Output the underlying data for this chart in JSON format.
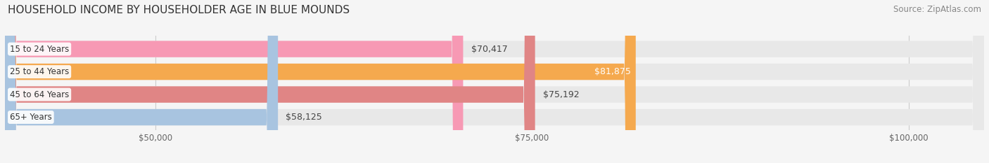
{
  "title": "HOUSEHOLD INCOME BY HOUSEHOLDER AGE IN BLUE MOUNDS",
  "source": "Source: ZipAtlas.com",
  "categories": [
    "15 to 24 Years",
    "25 to 44 Years",
    "45 to 64 Years",
    "65+ Years"
  ],
  "values": [
    70417,
    81875,
    75192,
    58125
  ],
  "bar_colors": [
    "#f799b4",
    "#f5a94e",
    "#e08585",
    "#a8c4e0"
  ],
  "bar_bg_color": "#e8e8e8",
  "xlim_min": 40000,
  "xlim_max": 105000,
  "xticks": [
    50000,
    75000,
    100000
  ],
  "xtick_labels": [
    "$50,000",
    "$75,000",
    "$100,000"
  ],
  "title_fontsize": 11,
  "source_fontsize": 8.5,
  "bar_label_fontsize": 9,
  "category_fontsize": 8.5,
  "background_color": "#f5f5f5",
  "bar_height": 0.72,
  "label_box_color": "#ffffff",
  "grid_color": "#cccccc"
}
